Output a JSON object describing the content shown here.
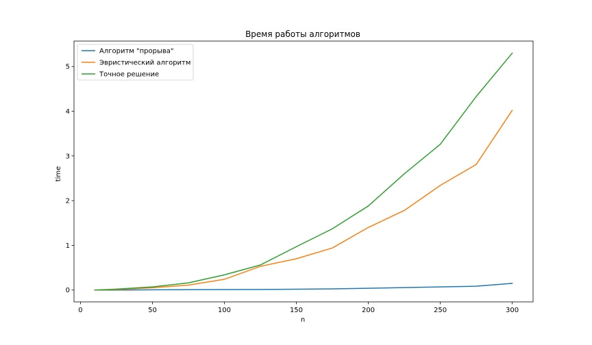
{
  "chart_data": {
    "type": "line",
    "title": "Время работы алгоритмов",
    "xlabel": "n",
    "ylabel": "time",
    "xlim": [
      -4.5,
      314.5
    ],
    "ylim": [
      -0.265,
      5.57
    ],
    "xticks": [
      0,
      50,
      100,
      150,
      200,
      250,
      300
    ],
    "yticks": [
      0,
      1,
      2,
      3,
      4,
      5
    ],
    "grid": false,
    "legend_position": "upper-left",
    "series": [
      {
        "name": "Алгоритм \"прорыва\"",
        "color": "#1f77b4",
        "x": [
          10,
          25,
          50,
          75,
          100,
          125,
          150,
          175,
          200,
          225,
          250,
          275,
          300
        ],
        "y": [
          0.0,
          0.0,
          0.005,
          0.008,
          0.01,
          0.012,
          0.018,
          0.025,
          0.04,
          0.055,
          0.07,
          0.085,
          0.15
        ]
      },
      {
        "name": "Эвристический алгоритм",
        "color": "#ff7f0e",
        "x": [
          10,
          25,
          50,
          75,
          100,
          125,
          150,
          175,
          200,
          225,
          250,
          275,
          300
        ],
        "y": [
          0.0,
          0.01,
          0.05,
          0.11,
          0.24,
          0.53,
          0.7,
          0.94,
          1.4,
          1.78,
          2.34,
          2.81,
          4.02
        ]
      },
      {
        "name": "Точное решение",
        "color": "#2ca02c",
        "x": [
          10,
          25,
          50,
          75,
          100,
          125,
          150,
          175,
          200,
          225,
          250,
          275,
          300
        ],
        "y": [
          0.0,
          0.02,
          0.07,
          0.16,
          0.34,
          0.56,
          0.97,
          1.37,
          1.88,
          2.6,
          3.26,
          4.33,
          5.3
        ]
      }
    ]
  }
}
